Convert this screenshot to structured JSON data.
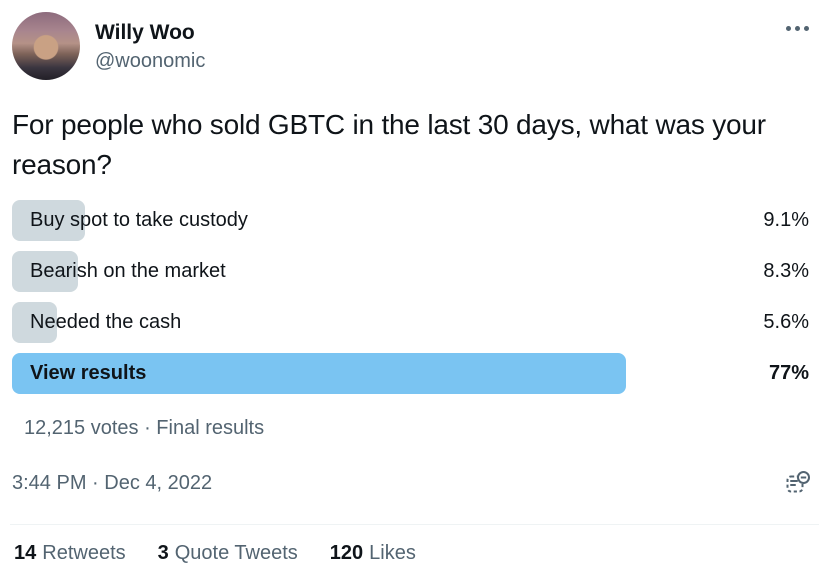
{
  "header": {
    "display_name": "Willy Woo",
    "handle": "@woonomic"
  },
  "question": "For people who sold GBTC in the last 30 days, what was your reason?",
  "poll": {
    "options": [
      {
        "label": "Buy spot to take custody",
        "percent_label": "9.1%",
        "percent_value": 9.1,
        "winner": false
      },
      {
        "label": "Bearish on the market",
        "percent_label": "8.3%",
        "percent_value": 8.3,
        "winner": false
      },
      {
        "label": "Needed the cash",
        "percent_label": "5.6%",
        "percent_value": 5.6,
        "winner": false
      },
      {
        "label": "View results",
        "percent_label": "77%",
        "percent_value": 77,
        "winner": true
      }
    ],
    "votes_summary": "12,215 votes · Final results"
  },
  "meta": {
    "timestamp": "3:44 PM · Dec 4, 2022"
  },
  "stats": [
    {
      "count": "14",
      "label": "Retweets"
    },
    {
      "count": "3",
      "label": "Quote Tweets"
    },
    {
      "count": "120",
      "label": "Likes"
    }
  ],
  "colors": {
    "winner_bar": "#7ac4f2",
    "bar": "#cfd9de",
    "text_primary": "#0f1419",
    "text_secondary": "#536471",
    "divider": "#eff3f4"
  }
}
